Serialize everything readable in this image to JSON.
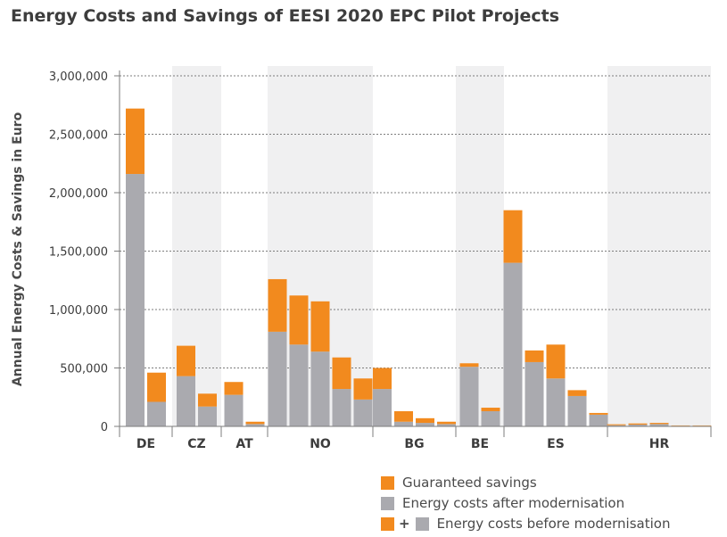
{
  "title": "Energy Costs and Savings of EESI 2020 EPC Pilot Projects",
  "colors": {
    "savings": "#f28a1e",
    "after": "#aaaaaf",
    "band": "#f0f0f1"
  },
  "legend": {
    "savings": "Guaranteed savings",
    "after": "Energy costs after modernisation",
    "plus": "+",
    "before": "Energy costs before modernisation"
  },
  "chart_data": {
    "type": "bar",
    "stacked": true,
    "title": "Energy Costs and Savings of EESI 2020 EPC Pilot Projects",
    "ylabel": "Annual Energy Costs & Savings in Euro",
    "ylim": [
      0,
      3000000
    ],
    "yticks": [
      0,
      500000,
      1000000,
      1500000,
      2000000,
      2500000,
      3000000
    ],
    "ytick_labels": [
      "0",
      "500,000",
      "1,000,000",
      "1,500,000",
      "2,000,000",
      "2,500,000",
      "3,000,000"
    ],
    "grid": true,
    "legend_position": "bottom-right",
    "groups": [
      {
        "label": "DE",
        "shaded": false,
        "after": [
          2160000,
          210000
        ],
        "savings": [
          560000,
          250000
        ]
      },
      {
        "label": "CZ",
        "shaded": true,
        "after": [
          430000,
          170000
        ],
        "savings": [
          260000,
          110000
        ]
      },
      {
        "label": "AT",
        "shaded": false,
        "after": [
          270000,
          20000
        ],
        "savings": [
          110000,
          20000
        ]
      },
      {
        "label": "NO",
        "shaded": true,
        "after": [
          810000,
          700000,
          640000,
          320000,
          230000
        ],
        "savings": [
          450000,
          420000,
          430000,
          270000,
          180000
        ]
      },
      {
        "label": "BG",
        "shaded": false,
        "after": [
          320000,
          40000,
          30000,
          20000
        ],
        "savings": [
          180000,
          90000,
          40000,
          20000
        ]
      },
      {
        "label": "BE",
        "shaded": true,
        "after": [
          510000,
          130000
        ],
        "savings": [
          30000,
          30000
        ]
      },
      {
        "label": "ES",
        "shaded": false,
        "after": [
          1400000,
          550000,
          410000,
          260000,
          100000
        ],
        "savings": [
          450000,
          100000,
          290000,
          50000,
          15000
        ]
      },
      {
        "label": "HR",
        "shaded": true,
        "after": [
          10000,
          15000,
          20000,
          5000,
          5000
        ],
        "savings": [
          8000,
          10000,
          10000,
          3000,
          3000
        ]
      }
    ],
    "series": [
      {
        "name": "Guaranteed savings",
        "key": "savings"
      },
      {
        "name": "Energy costs after modernisation",
        "key": "after"
      }
    ]
  }
}
